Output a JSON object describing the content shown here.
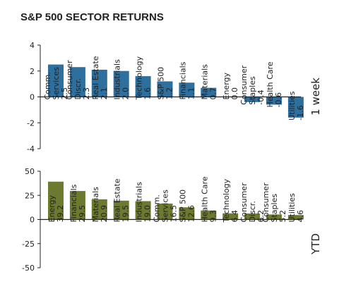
{
  "title": "S&P 500 SECTOR RETURNS",
  "chart_data": [
    {
      "type": "bar",
      "panel_label": "1 week",
      "categories": [
        "Comm.\nServices",
        "Consumer\nDiscr.",
        "Real Estate",
        "Industrials",
        "Technology",
        "S&P 500",
        "Financials",
        "Materials",
        "Energy",
        "Consumer\nStaples",
        "Health Care",
        "Utilities"
      ],
      "values": [
        2.5,
        2.3,
        2.1,
        2.0,
        1.6,
        1.2,
        1.1,
        0.7,
        0.0,
        -0.4,
        -0.6,
        -1.6
      ],
      "value_labels": [
        "2.5",
        "2.3",
        "2.1",
        "2.0",
        "1.6",
        "1.2",
        "1.1",
        "0.7",
        "0.0",
        "-0.4",
        "-0.6",
        "-1.6"
      ],
      "ylim": [
        -4,
        4
      ],
      "yticks": [
        "4",
        "2",
        "0",
        "-2",
        "-4"
      ],
      "color": "#2f6f9e",
      "grid": false
    },
    {
      "type": "bar",
      "panel_label": "YTD",
      "categories": [
        "Energy",
        "Financials",
        "Materials",
        "Real Estate",
        "Industrials",
        "Comm.\nServices",
        "S&P 500",
        "Health Care",
        "Technology",
        "Consumer\nDiscr.",
        "Consumer\nStaples",
        "Utilities"
      ],
      "values": [
        39.2,
        29.5,
        20.9,
        19.5,
        19.0,
        16.5,
        12.6,
        9.3,
        6.4,
        6.2,
        5.2,
        4.6
      ],
      "value_labels": [
        "39.2",
        "29.5",
        "20.9",
        "19.5",
        "19.0",
        "16.5",
        "12.6",
        "9.3",
        "6.4",
        "6.2",
        "5.2",
        "4.6"
      ],
      "ylim": [
        -50,
        50
      ],
      "yticks": [
        "50",
        "25",
        "0",
        "-25",
        "-50"
      ],
      "color": "#6b7a2e",
      "grid": false
    }
  ]
}
